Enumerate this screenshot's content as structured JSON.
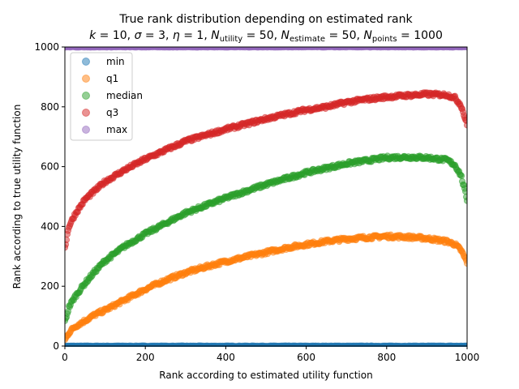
{
  "chart_data": {
    "type": "scatter",
    "title": "True rank distribution depending on estimated rank",
    "subtitle": "k = 10, σ = 3, η = 1, N_utility = 50, N_estimate = 50, N_points = 1000",
    "subtitle_parts": {
      "k": "k",
      "k_val": " = 10, ",
      "sigma": "σ",
      "sigma_val": " = 3, ",
      "eta": "η",
      "eta_val": " = 1, ",
      "n1": "N",
      "n1_sub": "utility",
      "n1_val": " = 50, ",
      "n2": "N",
      "n2_sub": "estimate",
      "n2_val": " = 50, ",
      "n3": "N",
      "n3_sub": "points",
      "n3_val": " = 1000"
    },
    "xlabel": "Rank according to estimated utility function",
    "ylabel": "Rank according to true utility function",
    "xlim": [
      0,
      1000
    ],
    "ylim": [
      0,
      1000
    ],
    "xticks": [
      0,
      200,
      400,
      600,
      800,
      1000
    ],
    "yticks": [
      0,
      200,
      400,
      600,
      800,
      1000
    ],
    "legend_position": "upper-left",
    "series": [
      {
        "name": "min",
        "color": "#1f77b4",
        "x": [
          0,
          100,
          200,
          300,
          400,
          500,
          600,
          700,
          800,
          900,
          1000
        ],
        "y": [
          0,
          0,
          0,
          0,
          0,
          0,
          0,
          0,
          0,
          0,
          0
        ]
      },
      {
        "name": "q1",
        "color": "#ff7f0e",
        "x": [
          0,
          10,
          25,
          50,
          75,
          100,
          150,
          200,
          250,
          300,
          350,
          400,
          450,
          500,
          550,
          600,
          650,
          700,
          750,
          800,
          850,
          900,
          950,
          970,
          985,
          1000
        ],
        "y": [
          20,
          45,
          65,
          85,
          105,
          120,
          155,
          190,
          220,
          245,
          265,
          283,
          298,
          313,
          328,
          340,
          350,
          358,
          363,
          367,
          365,
          360,
          350,
          340,
          320,
          280
        ]
      },
      {
        "name": "median",
        "color": "#2ca02c",
        "x": [
          0,
          10,
          25,
          50,
          75,
          100,
          150,
          200,
          250,
          300,
          350,
          400,
          450,
          500,
          550,
          600,
          650,
          700,
          750,
          800,
          850,
          900,
          950,
          970,
          985,
          1000
        ],
        "y": [
          80,
          130,
          165,
          210,
          250,
          285,
          335,
          375,
          410,
          445,
          470,
          495,
          518,
          540,
          560,
          580,
          595,
          610,
          620,
          630,
          632,
          630,
          622,
          605,
          570,
          490
        ]
      },
      {
        "name": "q3",
        "color": "#d62728",
        "x": [
          0,
          10,
          25,
          50,
          75,
          100,
          150,
          200,
          250,
          300,
          350,
          400,
          450,
          500,
          550,
          600,
          650,
          700,
          750,
          800,
          850,
          900,
          950,
          970,
          985,
          1000
        ],
        "y": [
          330,
          400,
          440,
          490,
          520,
          550,
          590,
          625,
          655,
          685,
          705,
          725,
          742,
          760,
          775,
          790,
          800,
          815,
          825,
          833,
          838,
          842,
          840,
          830,
          805,
          740
        ]
      },
      {
        "name": "max",
        "color": "#9467bd",
        "x": [
          0,
          100,
          200,
          300,
          400,
          500,
          600,
          700,
          800,
          900,
          1000
        ],
        "y": [
          1000,
          1000,
          1000,
          1000,
          1000,
          1000,
          1000,
          1000,
          1000,
          1000,
          1000
        ]
      }
    ]
  }
}
